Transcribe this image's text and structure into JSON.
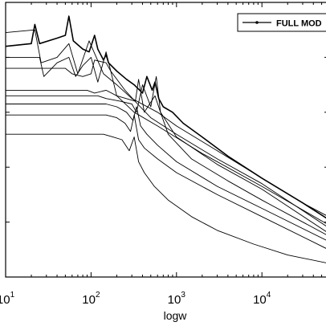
{
  "chart_data": {
    "type": "line",
    "title": "",
    "xlabel": "logw",
    "ylabel": "",
    "x_scale": "log",
    "xlim": [
      10,
      60000
    ],
    "ylim": [
      0,
      1
    ],
    "grid": false,
    "legend": {
      "position": "top-right",
      "entries": [
        "FULL MOD"
      ]
    },
    "x_ticks": [
      {
        "value": 10,
        "base": "10",
        "exp": "1"
      },
      {
        "value": 100,
        "base": "10",
        "exp": "2"
      },
      {
        "value": 1000,
        "base": "10",
        "exp": "3"
      },
      {
        "value": 10000,
        "base": "10",
        "exp": "4"
      }
    ],
    "series": [
      {
        "name": "FULL MOD",
        "full": true,
        "x": [
          10,
          20,
          22,
          25,
          40,
          50,
          55,
          62,
          80,
          95,
          110,
          120,
          140,
          150,
          160,
          200,
          260,
          320,
          400,
          450,
          520,
          560,
          620,
          700,
          900,
          1200,
          2000,
          4000,
          10000,
          30000,
          60000
        ],
        "y": [
          0.84,
          0.85,
          0.92,
          0.85,
          0.87,
          0.88,
          0.95,
          0.86,
          0.83,
          0.82,
          0.88,
          0.83,
          0.79,
          0.81,
          0.78,
          0.75,
          0.72,
          0.7,
          0.67,
          0.73,
          0.68,
          0.71,
          0.65,
          0.62,
          0.6,
          0.56,
          0.51,
          0.44,
          0.36,
          0.27,
          0.21
        ]
      },
      {
        "x": [
          10,
          22,
          26,
          40,
          55,
          70,
          95,
          140,
          200,
          300,
          600,
          1000,
          3000,
          10000,
          30000,
          60000
        ],
        "y": [
          0.89,
          0.9,
          0.78,
          0.8,
          0.85,
          0.74,
          0.86,
          0.74,
          0.7,
          0.65,
          0.6,
          0.55,
          0.46,
          0.36,
          0.27,
          0.22
        ]
      },
      {
        "x": [
          10,
          25,
          28,
          40,
          55,
          66,
          80,
          100,
          120,
          150,
          200,
          320,
          600,
          2000,
          10000,
          60000
        ],
        "y": [
          0.8,
          0.8,
          0.73,
          0.78,
          0.8,
          0.73,
          0.77,
          0.8,
          0.71,
          0.82,
          0.66,
          0.6,
          0.55,
          0.45,
          0.33,
          0.19
        ]
      },
      {
        "x": [
          10,
          50,
          60,
          80,
          100,
          110,
          150,
          170,
          250,
          350,
          500,
          1000,
          3000,
          10000,
          60000
        ],
        "y": [
          0.76,
          0.76,
          0.74,
          0.73,
          0.74,
          0.79,
          0.78,
          0.75,
          0.68,
          0.63,
          0.58,
          0.52,
          0.43,
          0.34,
          0.18
        ]
      },
      {
        "x": [
          10,
          90,
          110,
          150,
          200,
          330,
          360,
          420,
          560,
          650,
          1000,
          3000,
          10000,
          60000
        ],
        "y": [
          0.68,
          0.68,
          0.67,
          0.68,
          0.66,
          0.64,
          0.72,
          0.6,
          0.66,
          0.6,
          0.51,
          0.41,
          0.32,
          0.16
        ]
      },
      {
        "x": [
          10,
          120,
          150,
          220,
          300,
          340,
          400,
          500,
          580,
          650,
          800,
          1500,
          4000,
          10000,
          60000
        ],
        "y": [
          0.66,
          0.66,
          0.65,
          0.64,
          0.63,
          0.6,
          0.7,
          0.62,
          0.73,
          0.6,
          0.52,
          0.43,
          0.35,
          0.28,
          0.15
        ]
      },
      {
        "x": [
          10,
          150,
          200,
          260,
          310,
          340,
          380,
          450,
          600,
          1000,
          3000,
          10000,
          60000
        ],
        "y": [
          0.63,
          0.63,
          0.62,
          0.6,
          0.57,
          0.62,
          0.55,
          0.52,
          0.48,
          0.42,
          0.33,
          0.25,
          0.13
        ]
      },
      {
        "x": [
          10,
          150,
          200,
          250,
          290,
          320,
          360,
          420,
          600,
          1000,
          3000,
          10000,
          60000
        ],
        "y": [
          0.59,
          0.59,
          0.58,
          0.56,
          0.53,
          0.59,
          0.5,
          0.47,
          0.43,
          0.38,
          0.3,
          0.22,
          0.1
        ]
      },
      {
        "x": [
          10,
          140,
          180,
          230,
          280,
          320,
          360,
          420,
          550,
          800,
          1500,
          3000,
          8000,
          20000,
          60000
        ],
        "y": [
          0.52,
          0.52,
          0.51,
          0.5,
          0.46,
          0.51,
          0.42,
          0.38,
          0.33,
          0.28,
          0.22,
          0.17,
          0.12,
          0.08,
          0.05
        ]
      }
    ]
  }
}
